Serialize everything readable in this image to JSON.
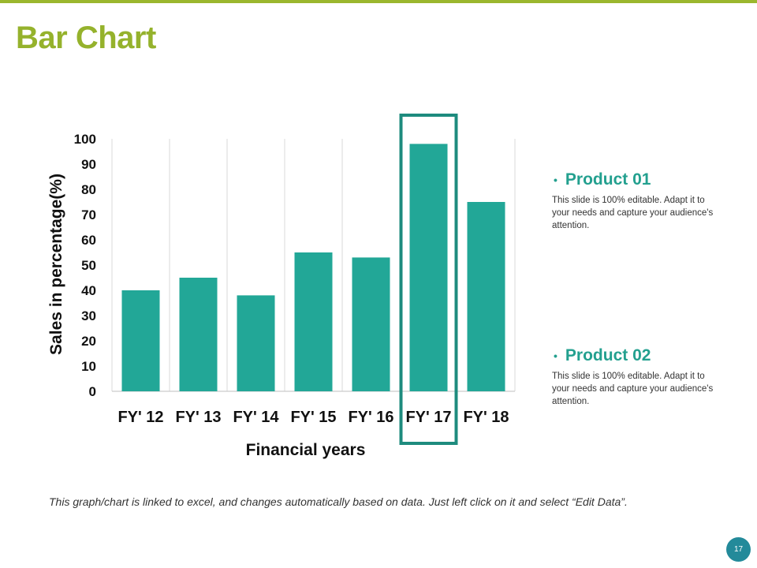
{
  "slide": {
    "title": "Bar Chart",
    "footnote": "This graph/chart is linked to excel, and changes automatically based on data. Just left click on it and select “Edit Data”.",
    "page_number": "17"
  },
  "products": [
    {
      "bullet": "•",
      "title": "Product 01",
      "description": "This slide is 100% editable. Adapt it to your needs and capture your audience's attention."
    },
    {
      "bullet": "•",
      "title": "Product 02",
      "description": "This slide is 100% editable. Adapt it to your needs and capture your audience's attention."
    }
  ],
  "colors": {
    "accent_green": "#95b22c",
    "bar": "#22a797",
    "highlight": "#1e8b7e",
    "page_badge": "#238a9a"
  },
  "chart_data": {
    "type": "bar",
    "title": "",
    "categories": [
      "FY' 12",
      "FY' 13",
      "FY' 14",
      "FY' 15",
      "FY' 16",
      "FY' 17",
      "FY' 18"
    ],
    "series": [
      {
        "name": "Sales",
        "values": [
          40,
          45,
          38,
          55,
          53,
          98,
          75
        ]
      }
    ],
    "xlabel": "Financial years",
    "ylabel": "Sales in percentage(%)",
    "ylim": [
      0,
      100
    ],
    "yticks": [
      0,
      10,
      20,
      30,
      40,
      50,
      60,
      70,
      80,
      90,
      100
    ],
    "grid": "vertical",
    "highlighted_category": "FY' 17"
  }
}
